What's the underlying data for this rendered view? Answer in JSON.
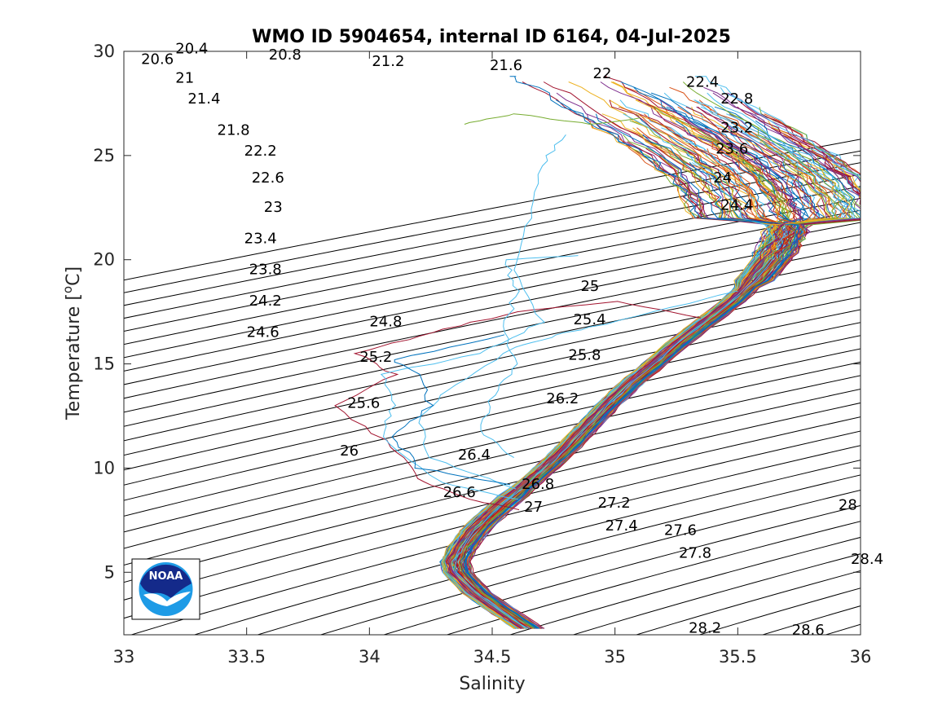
{
  "chart_data": {
    "type": "line",
    "title": "WMO ID 5904654, internal ID 6164, 04-Jul-2025",
    "xlabel": "Salinity",
    "ylabel_main": "Temperature [",
    "ylabel_sup": "o",
    "ylabel_end": "C]",
    "xlim": [
      33,
      36
    ],
    "ylim": [
      2,
      30
    ],
    "x_ticks": [
      "33",
      "33.5",
      "34",
      "34.5",
      "35",
      "35.5",
      "36"
    ],
    "y_ticks": [
      "5",
      "10",
      "15",
      "20",
      "25",
      "30"
    ],
    "grid": false,
    "logo": "NOAA",
    "contour_colors": "#000000",
    "density_contours": [
      {
        "sigma": 20.4,
        "label": "20.4",
        "label_at": [
          33.21,
          29.9
        ]
      },
      {
        "sigma": 20.6,
        "label": "20.6",
        "label_at": [
          33.07,
          29.4
        ]
      },
      {
        "sigma": 20.8,
        "label": "20.8",
        "label_at": [
          33.59,
          29.6
        ]
      },
      {
        "sigma": 21.0,
        "label": "21",
        "label_at": [
          33.21,
          28.5
        ]
      },
      {
        "sigma": 21.2,
        "label": "21.2",
        "label_at": [
          34.01,
          29.3
        ]
      },
      {
        "sigma": 21.4,
        "label": "21.4",
        "label_at": [
          33.26,
          27.5
        ]
      },
      {
        "sigma": 21.6,
        "label": "21.6",
        "label_at": [
          34.49,
          29.1
        ]
      },
      {
        "sigma": 21.8,
        "label": "21.8",
        "label_at": [
          33.38,
          26.0
        ]
      },
      {
        "sigma": 22.0,
        "label": "22",
        "label_at": [
          34.91,
          28.7
        ]
      },
      {
        "sigma": 22.2,
        "label": "22.2",
        "label_at": [
          33.49,
          25.0
        ]
      },
      {
        "sigma": 22.4,
        "label": "22.4",
        "label_at": [
          35.29,
          28.3
        ]
      },
      {
        "sigma": 22.6,
        "label": "22.6",
        "label_at": [
          33.52,
          23.7
        ]
      },
      {
        "sigma": 22.8,
        "label": "22.8",
        "label_at": [
          35.43,
          27.5
        ]
      },
      {
        "sigma": 23.0,
        "label": "23",
        "label_at": [
          33.57,
          22.3
        ]
      },
      {
        "sigma": 23.2,
        "label": "23.2",
        "label_at": [
          35.43,
          26.1
        ]
      },
      {
        "sigma": 23.4,
        "label": "23.4",
        "label_at": [
          33.49,
          20.8
        ]
      },
      {
        "sigma": 23.6,
        "label": "23.6",
        "label_at": [
          35.41,
          25.1
        ]
      },
      {
        "sigma": 23.8,
        "label": "23.8",
        "label_at": [
          33.51,
          19.3
        ]
      },
      {
        "sigma": 24.0,
        "label": "24",
        "label_at": [
          35.4,
          23.7
        ]
      },
      {
        "sigma": 24.2,
        "label": "24.2",
        "label_at": [
          33.51,
          17.8
        ]
      },
      {
        "sigma": 24.4,
        "label": "24.4",
        "label_at": [
          35.43,
          22.4
        ]
      },
      {
        "sigma": 24.6,
        "label": "24.6",
        "label_at": [
          33.5,
          16.3
        ]
      },
      {
        "sigma": 24.8,
        "label": "24.8",
        "label_at": [
          34.0,
          16.8
        ]
      },
      {
        "sigma": 25.0,
        "label": "25",
        "label_at": [
          34.86,
          18.5
        ]
      },
      {
        "sigma": 25.2,
        "label": "25.2",
        "label_at": [
          33.96,
          15.1
        ]
      },
      {
        "sigma": 25.4,
        "label": "25.4",
        "label_at": [
          34.83,
          16.9
        ]
      },
      {
        "sigma": 25.6,
        "label": "25.6",
        "label_at": [
          33.91,
          12.9
        ]
      },
      {
        "sigma": 25.8,
        "label": "25.8",
        "label_at": [
          34.81,
          15.2
        ]
      },
      {
        "sigma": 26.0,
        "label": "26",
        "label_at": [
          33.88,
          10.6
        ]
      },
      {
        "sigma": 26.2,
        "label": "26.2",
        "label_at": [
          34.72,
          13.1
        ]
      },
      {
        "sigma": 26.4,
        "label": "26.4",
        "label_at": [
          34.36,
          10.4
        ]
      },
      {
        "sigma": 26.6,
        "label": "26.6",
        "label_at": [
          34.3,
          8.6
        ]
      },
      {
        "sigma": 26.8,
        "label": "26.8",
        "label_at": [
          34.62,
          9.0
        ]
      },
      {
        "sigma": 27.0,
        "label": "27",
        "label_at": [
          34.63,
          7.9
        ]
      },
      {
        "sigma": 27.2,
        "label": "27.2",
        "label_at": [
          34.93,
          8.1
        ]
      },
      {
        "sigma": 27.4,
        "label": "27.4",
        "label_at": [
          34.96,
          7.0
        ]
      },
      {
        "sigma": 27.6,
        "label": "27.6",
        "label_at": [
          35.2,
          6.8
        ]
      },
      {
        "sigma": 27.8,
        "label": "27.8",
        "label_at": [
          35.26,
          5.7
        ]
      },
      {
        "sigma": 28.0,
        "label": "28",
        "label_at": [
          35.91,
          8.0
        ]
      },
      {
        "sigma": 28.2,
        "label": "28.2",
        "label_at": [
          35.3,
          2.1
        ]
      },
      {
        "sigma": 28.4,
        "label": "28.4",
        "label_at": [
          35.96,
          5.4
        ]
      },
      {
        "sigma": 28.6,
        "label": "28.6",
        "label_at": [
          35.72,
          2.0
        ]
      }
    ],
    "profiles": {
      "count": 130,
      "colors": [
        "#0072BD",
        "#D95319",
        "#EDB120",
        "#7E2F8E",
        "#77AC30",
        "#4DBEEE",
        "#A2142F"
      ],
      "mean_profile": [
        {
          "t": 2.3,
          "s": 34.65
        },
        {
          "t": 3.0,
          "s": 34.56
        },
        {
          "t": 4.0,
          "s": 34.44
        },
        {
          "t": 5.0,
          "s": 34.36
        },
        {
          "t": 5.5,
          "s": 34.35
        },
        {
          "t": 6.2,
          "s": 34.38
        },
        {
          "t": 7.0,
          "s": 34.43
        },
        {
          "t": 8.0,
          "s": 34.52
        },
        {
          "t": 9.0,
          "s": 34.62
        },
        {
          "t": 10.0,
          "s": 34.72
        },
        {
          "t": 11.0,
          "s": 34.81
        },
        {
          "t": 12.0,
          "s": 34.89
        },
        {
          "t": 13.0,
          "s": 34.97
        },
        {
          "t": 14.0,
          "s": 35.06
        },
        {
          "t": 15.0,
          "s": 35.16
        },
        {
          "t": 16.0,
          "s": 35.26
        },
        {
          "t": 17.0,
          "s": 35.37
        },
        {
          "t": 18.0,
          "s": 35.48
        },
        {
          "t": 19.0,
          "s": 35.57
        },
        {
          "t": 20.0,
          "s": 35.64
        },
        {
          "t": 21.0,
          "s": 35.69
        },
        {
          "t": 22.0,
          "s": 35.71
        },
        {
          "t": 23.0,
          "s": 35.67
        },
        {
          "t": 24.0,
          "s": 35.6
        },
        {
          "t": 25.0,
          "s": 35.5
        },
        {
          "t": 26.0,
          "s": 35.36
        },
        {
          "t": 27.0,
          "s": 35.22
        },
        {
          "t": 28.0,
          "s": 35.08
        },
        {
          "t": 28.8,
          "s": 34.95
        }
      ],
      "anomalous_profiles": [
        {
          "color": "#A2142F",
          "points": [
            [
              34.62,
              8.0
            ],
            [
              34.4,
              8.5
            ],
            [
              34.2,
              9.5
            ],
            [
              34.1,
              11.0
            ],
            [
              33.85,
              13.0
            ],
            [
              34.1,
              14.5
            ],
            [
              33.95,
              15.5
            ],
            [
              34.25,
              16.5
            ],
            [
              34.6,
              17.5
            ],
            [
              35.0,
              18.0
            ],
            [
              35.35,
              17.2
            ]
          ]
        },
        {
          "color": "#4DBEEE",
          "points": [
            [
              34.6,
              8.5
            ],
            [
              34.3,
              9.3
            ],
            [
              34.05,
              11.5
            ],
            [
              34.1,
              13.0
            ],
            [
              34.05,
              14.5
            ],
            [
              34.45,
              15.5
            ],
            [
              34.7,
              17.0
            ],
            [
              34.6,
              19.5
            ],
            [
              34.65,
              22.0
            ],
            [
              34.7,
              24.5
            ],
            [
              34.8,
              26.0
            ]
          ]
        },
        {
          "color": "#4DBEEE",
          "points": [
            [
              34.6,
              9.0
            ],
            [
              34.25,
              10.5
            ],
            [
              34.2,
              12.5
            ],
            [
              34.35,
              14.0
            ],
            [
              34.6,
              15.8
            ],
            [
              34.8,
              16.5
            ],
            [
              35.1,
              17.3
            ],
            [
              35.5,
              18.5
            ]
          ]
        },
        {
          "color": "#0072BD",
          "points": [
            [
              34.58,
              9.2
            ],
            [
              34.2,
              10.0
            ],
            [
              34.1,
              11.5
            ],
            [
              34.25,
              13.0
            ],
            [
              34.2,
              14.5
            ],
            [
              34.1,
              15.2
            ],
            [
              34.55,
              16.4
            ]
          ]
        },
        {
          "color": "#4DBEEE",
          "points": [
            [
              34.58,
              10.5
            ],
            [
              34.45,
              11.8
            ],
            [
              34.5,
              13.5
            ],
            [
              34.6,
              15.0
            ],
            [
              34.55,
              16.8
            ],
            [
              34.6,
              18.5
            ],
            [
              34.55,
              20.0
            ],
            [
              34.85,
              20.2
            ]
          ]
        },
        {
          "color": "#77AC30",
          "points": [
            [
              34.38,
              26.5
            ],
            [
              34.6,
              27.0
            ],
            [
              34.9,
              26.5
            ],
            [
              35.1,
              26.8
            ]
          ]
        }
      ]
    }
  }
}
